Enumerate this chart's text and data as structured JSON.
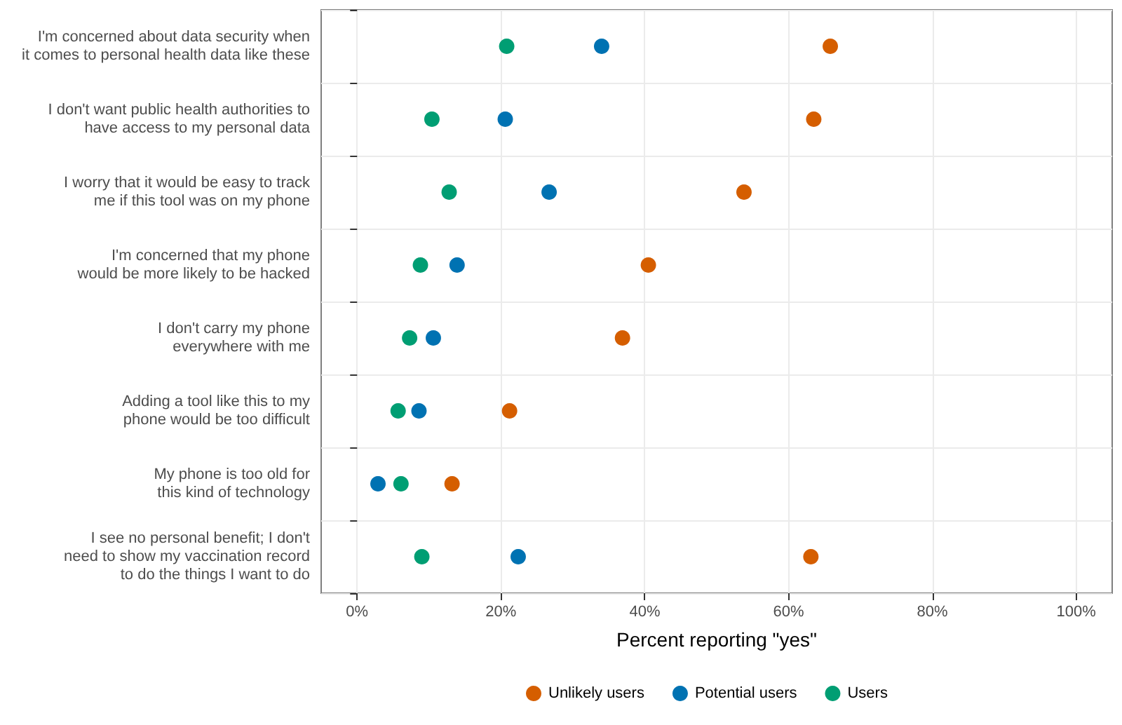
{
  "chart_data": {
    "type": "scatter",
    "orientation": "horizontal",
    "xlabel": "Percent reporting \"yes\"",
    "categories": [
      "I'm concerned about data security when\nit comes to personal health data like these",
      "I don't want public health authorities to\nhave access to my personal data",
      "I worry that it would be easy to track\nme if this tool was on my phone",
      "I'm concerned that my phone\nwould be more likely to be hacked",
      "I don't carry my phone\neverywhere with me",
      "Adding a tool like this to my\nphone would be too difficult",
      "My phone is too old for\nthis kind of technology",
      "I see no personal benefit; I don't\nneed to show my vaccination record\nto do the things I want to do"
    ],
    "series": [
      {
        "name": "Unlikely users",
        "color": "#d55e00",
        "values": [
          65.8,
          63.5,
          53.8,
          40.5,
          36.9,
          21.2,
          13.2,
          63.1
        ]
      },
      {
        "name": "Potential users",
        "color": "#0072b2",
        "values": [
          34.0,
          20.6,
          26.7,
          13.9,
          10.6,
          8.6,
          2.9,
          22.4
        ]
      },
      {
        "name": "Users",
        "color": "#009e73",
        "values": [
          20.8,
          10.4,
          12.8,
          8.8,
          7.3,
          5.7,
          6.1,
          9.0
        ]
      }
    ],
    "xlim": [
      -5,
      105
    ],
    "xticks": [
      {
        "value": 0,
        "label": "0%"
      },
      {
        "value": 20,
        "label": "20%"
      },
      {
        "value": 40,
        "label": "40%"
      },
      {
        "value": 60,
        "label": "60%"
      },
      {
        "value": 80,
        "label": "80%"
      },
      {
        "value": 100,
        "label": "100%"
      }
    ],
    "grid": true,
    "legend": "bottom",
    "marker": "circle"
  }
}
